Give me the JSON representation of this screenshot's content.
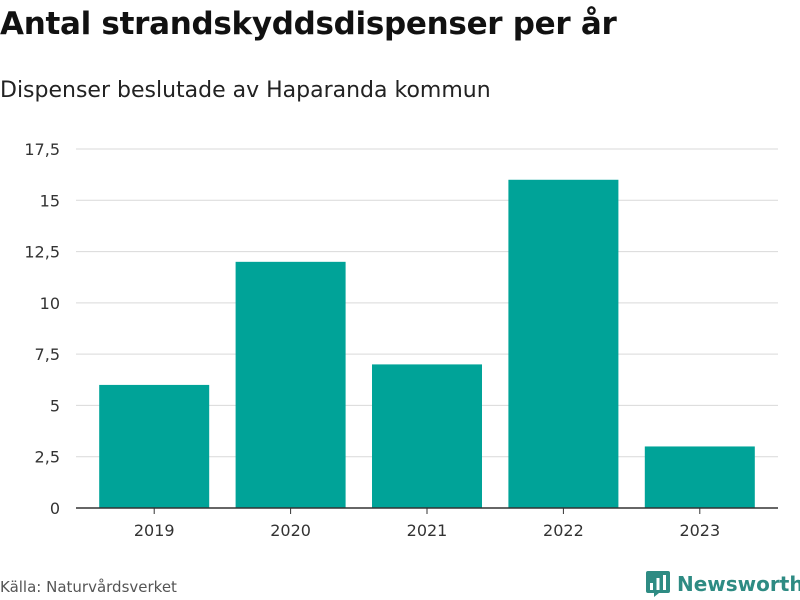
{
  "header": {
    "title": "Antal strandskyddsdispenser per år",
    "subtitle": "Dispenser beslutade av Haparanda kommun"
  },
  "footer": {
    "source": "Källa: Naturvårdsverket",
    "brand": "Newsworthy",
    "brand_icon": "bar-chart-logo-icon"
  },
  "colors": {
    "bar": "#00a398",
    "grid": "#d9d9d9",
    "axis": "#333333",
    "brand": "#2e8b83"
  },
  "chart_data": {
    "type": "bar",
    "title": "Antal strandskyddsdispenser per år",
    "subtitle": "Dispenser beslutade av Haparanda kommun",
    "categories": [
      "2019",
      "2020",
      "2021",
      "2022",
      "2023"
    ],
    "values": [
      6,
      12,
      7,
      16,
      3
    ],
    "ylim": [
      0,
      17.5
    ],
    "yticks": [
      0,
      2.5,
      5,
      7.5,
      10,
      12.5,
      15,
      17.5
    ],
    "ytick_labels": [
      "0",
      "2,5",
      "5",
      "7,5",
      "10",
      "12,5",
      "15",
      "17,5"
    ],
    "grid": true,
    "xlabel": "",
    "ylabel": ""
  }
}
